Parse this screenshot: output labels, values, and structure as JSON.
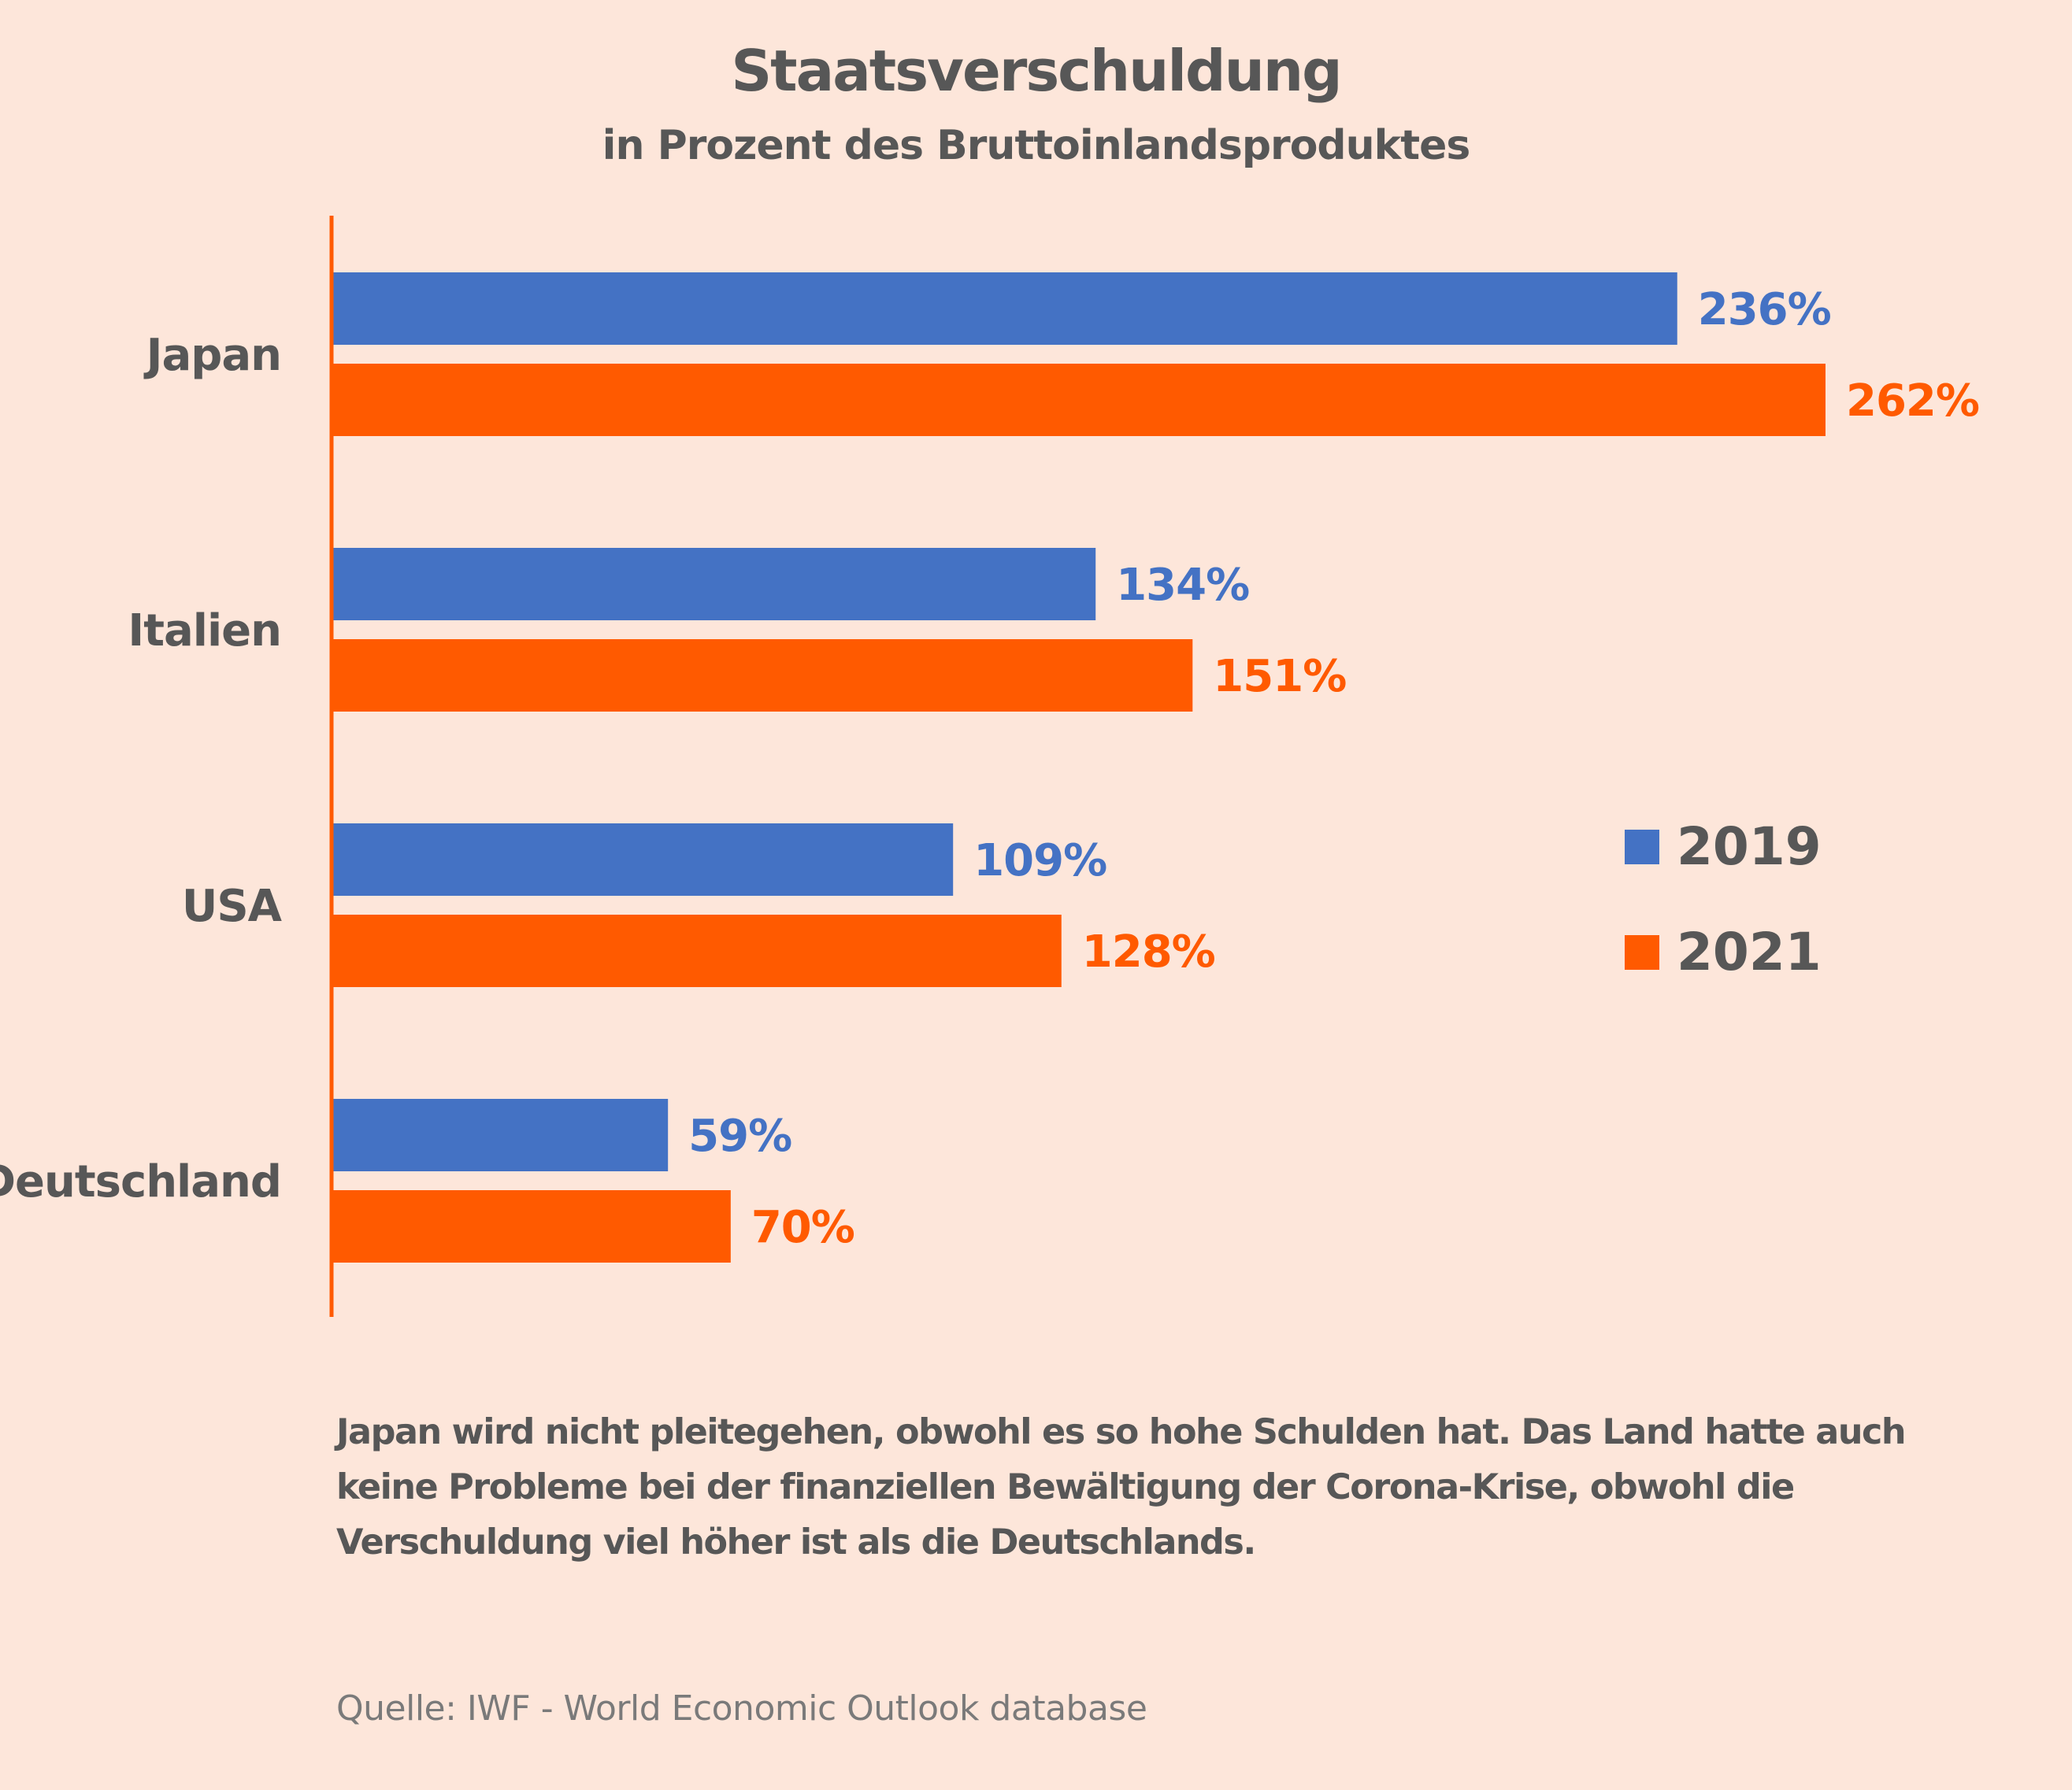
{
  "title": "Staatsverschuldung",
  "subtitle": "in Prozent des Bruttoinlandsproduktes",
  "chart_data": {
    "type": "bar",
    "orientation": "horizontal",
    "title": "Staatsverschuldung",
    "subtitle": "in Prozent des Bruttoinlandsproduktes",
    "categories": [
      "Japan",
      "Italien",
      "USA",
      "Deutschland"
    ],
    "series": [
      {
        "name": "2019",
        "values": [
          236,
          134,
          109,
          59
        ],
        "labels": [
          "236%",
          "134%",
          "109%",
          "59%"
        ],
        "color": "#4472c4"
      },
      {
        "name": "2021",
        "values": [
          262,
          151,
          128,
          70
        ],
        "labels": [
          "262%",
          "151%",
          "128%",
          "70%"
        ],
        "color": "#ff5a00"
      }
    ],
    "unit": "%",
    "xlim": [
      0,
      262
    ],
    "grid": false,
    "legend_position": "right",
    "axis_color": "#ff5a00"
  },
  "note": "Japan wird nicht pleitegehen, obwohl es so hohe Schulden hat. Das Land hatte auch keine Probleme bei der finanziellen Bewältigung der Corona-Krise, obwohl die Verschuldung viel höher ist als die Deutschlands.",
  "source": "Quelle: IWF - World Economic Outlook database"
}
